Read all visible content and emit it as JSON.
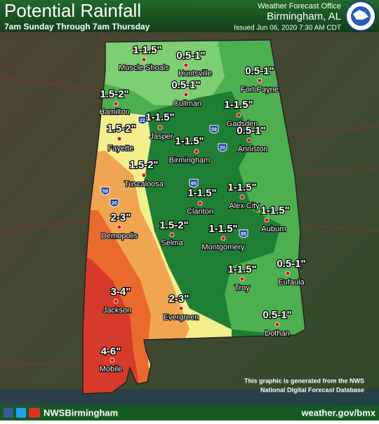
{
  "header": {
    "title": "Potential Rainfall",
    "subtitle": "7am Sunday Through 7am Thursday",
    "office": "Weather Forecast Office",
    "location": "Birmingham, AL",
    "issued": "Issued Jun 06, 2020 7:30 AM CDT"
  },
  "labels": [
    {
      "amount": "1-1.5\"",
      "city": "Muscle Shoals"
    },
    {
      "amount": "0.5-1\"",
      "city": "Huntsville"
    },
    {
      "amount": "0.5-1\"",
      "city": "Cullman"
    },
    {
      "amount": "0.5-1\"",
      "city": "Fort Payne"
    },
    {
      "amount": "1.5-2\"",
      "city": "Hamilton"
    },
    {
      "amount": "1-1.5\"",
      "city": "Jasper"
    },
    {
      "amount": "1-1.5\"",
      "city": "Gadsden"
    },
    {
      "amount": "1.5-2\"",
      "city": "Fayette"
    },
    {
      "amount": "0.5-1\"",
      "city": "Anniston"
    },
    {
      "amount": "1-1.5\"",
      "city": "Birmingham"
    },
    {
      "amount": "1.5-2\"",
      "city": "Tuscaloosa"
    },
    {
      "amount": "1-1.5\"",
      "city": "Clanton"
    },
    {
      "amount": "1-1.5\"",
      "city": "Alex City"
    },
    {
      "amount": "1-1.5\"",
      "city": "Auburn"
    },
    {
      "amount": "2-3\"",
      "city": "Demopolis"
    },
    {
      "amount": "1.5-2\"",
      "city": "Selma"
    },
    {
      "amount": "1-1.5\"",
      "city": "Montgomery"
    },
    {
      "amount": "1-1.5\"",
      "city": "Troy"
    },
    {
      "amount": "0.5-1\"",
      "city": "Eufaula"
    },
    {
      "amount": "3-4\"",
      "city": "Jackson"
    },
    {
      "amount": "2-3\"",
      "city": "Evergreen"
    },
    {
      "amount": "0.5-1\"",
      "city": "Dothan"
    },
    {
      "amount": "4-6\"",
      "city": "Mobile"
    }
  ],
  "interstates": [
    "22",
    "59",
    "20",
    "65",
    "59",
    "20",
    "85"
  ],
  "note": [
    "This graphic is generated from the NWS",
    "National Digital Forecast Database"
  ],
  "footer": {
    "handle": "NWSBirmingham",
    "url": "weather.gov/bmx"
  }
}
